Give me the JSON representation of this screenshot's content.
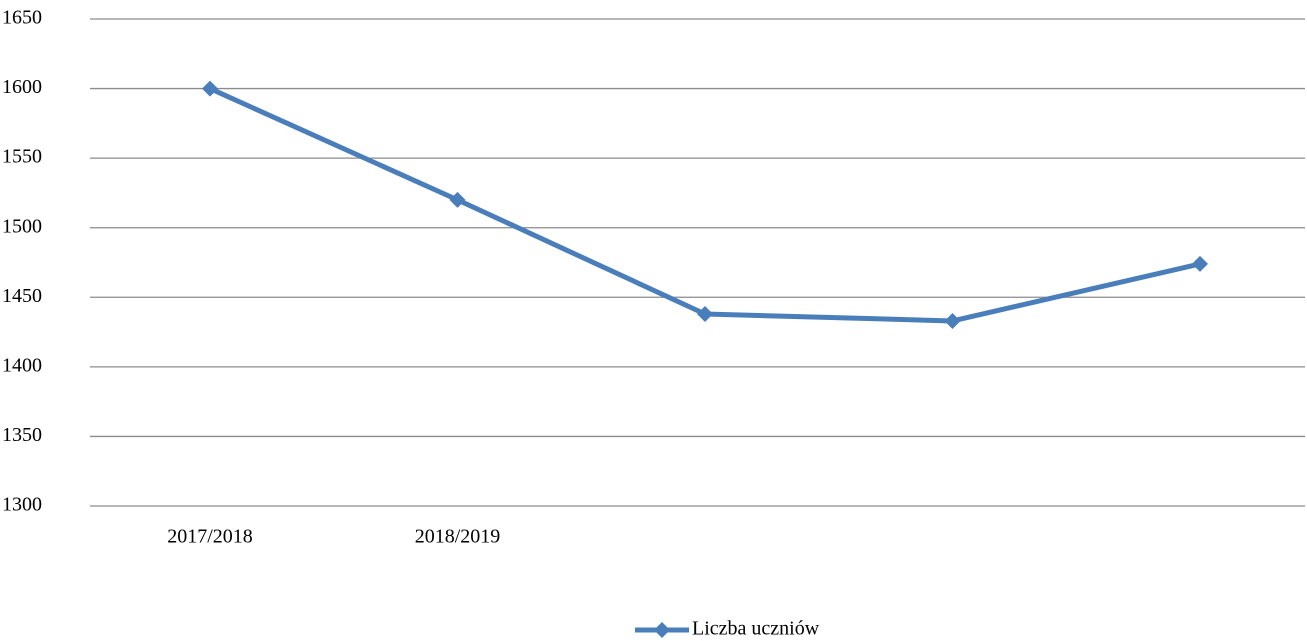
{
  "chart_data": {
    "type": "line",
    "categories": [
      "2017/2018",
      "2018/2019",
      null,
      null,
      null
    ],
    "series": [
      {
        "name": "Liczba uczniów",
        "color": "#4a7ebb",
        "values": [
          1600,
          1520,
          1438,
          1433,
          1474
        ]
      }
    ],
    "ylim": [
      1300,
      1650
    ],
    "yticks": [
      1300,
      1350,
      1400,
      1450,
      1500,
      1550,
      1600,
      1650
    ],
    "grid": true,
    "legend": "bottom"
  }
}
